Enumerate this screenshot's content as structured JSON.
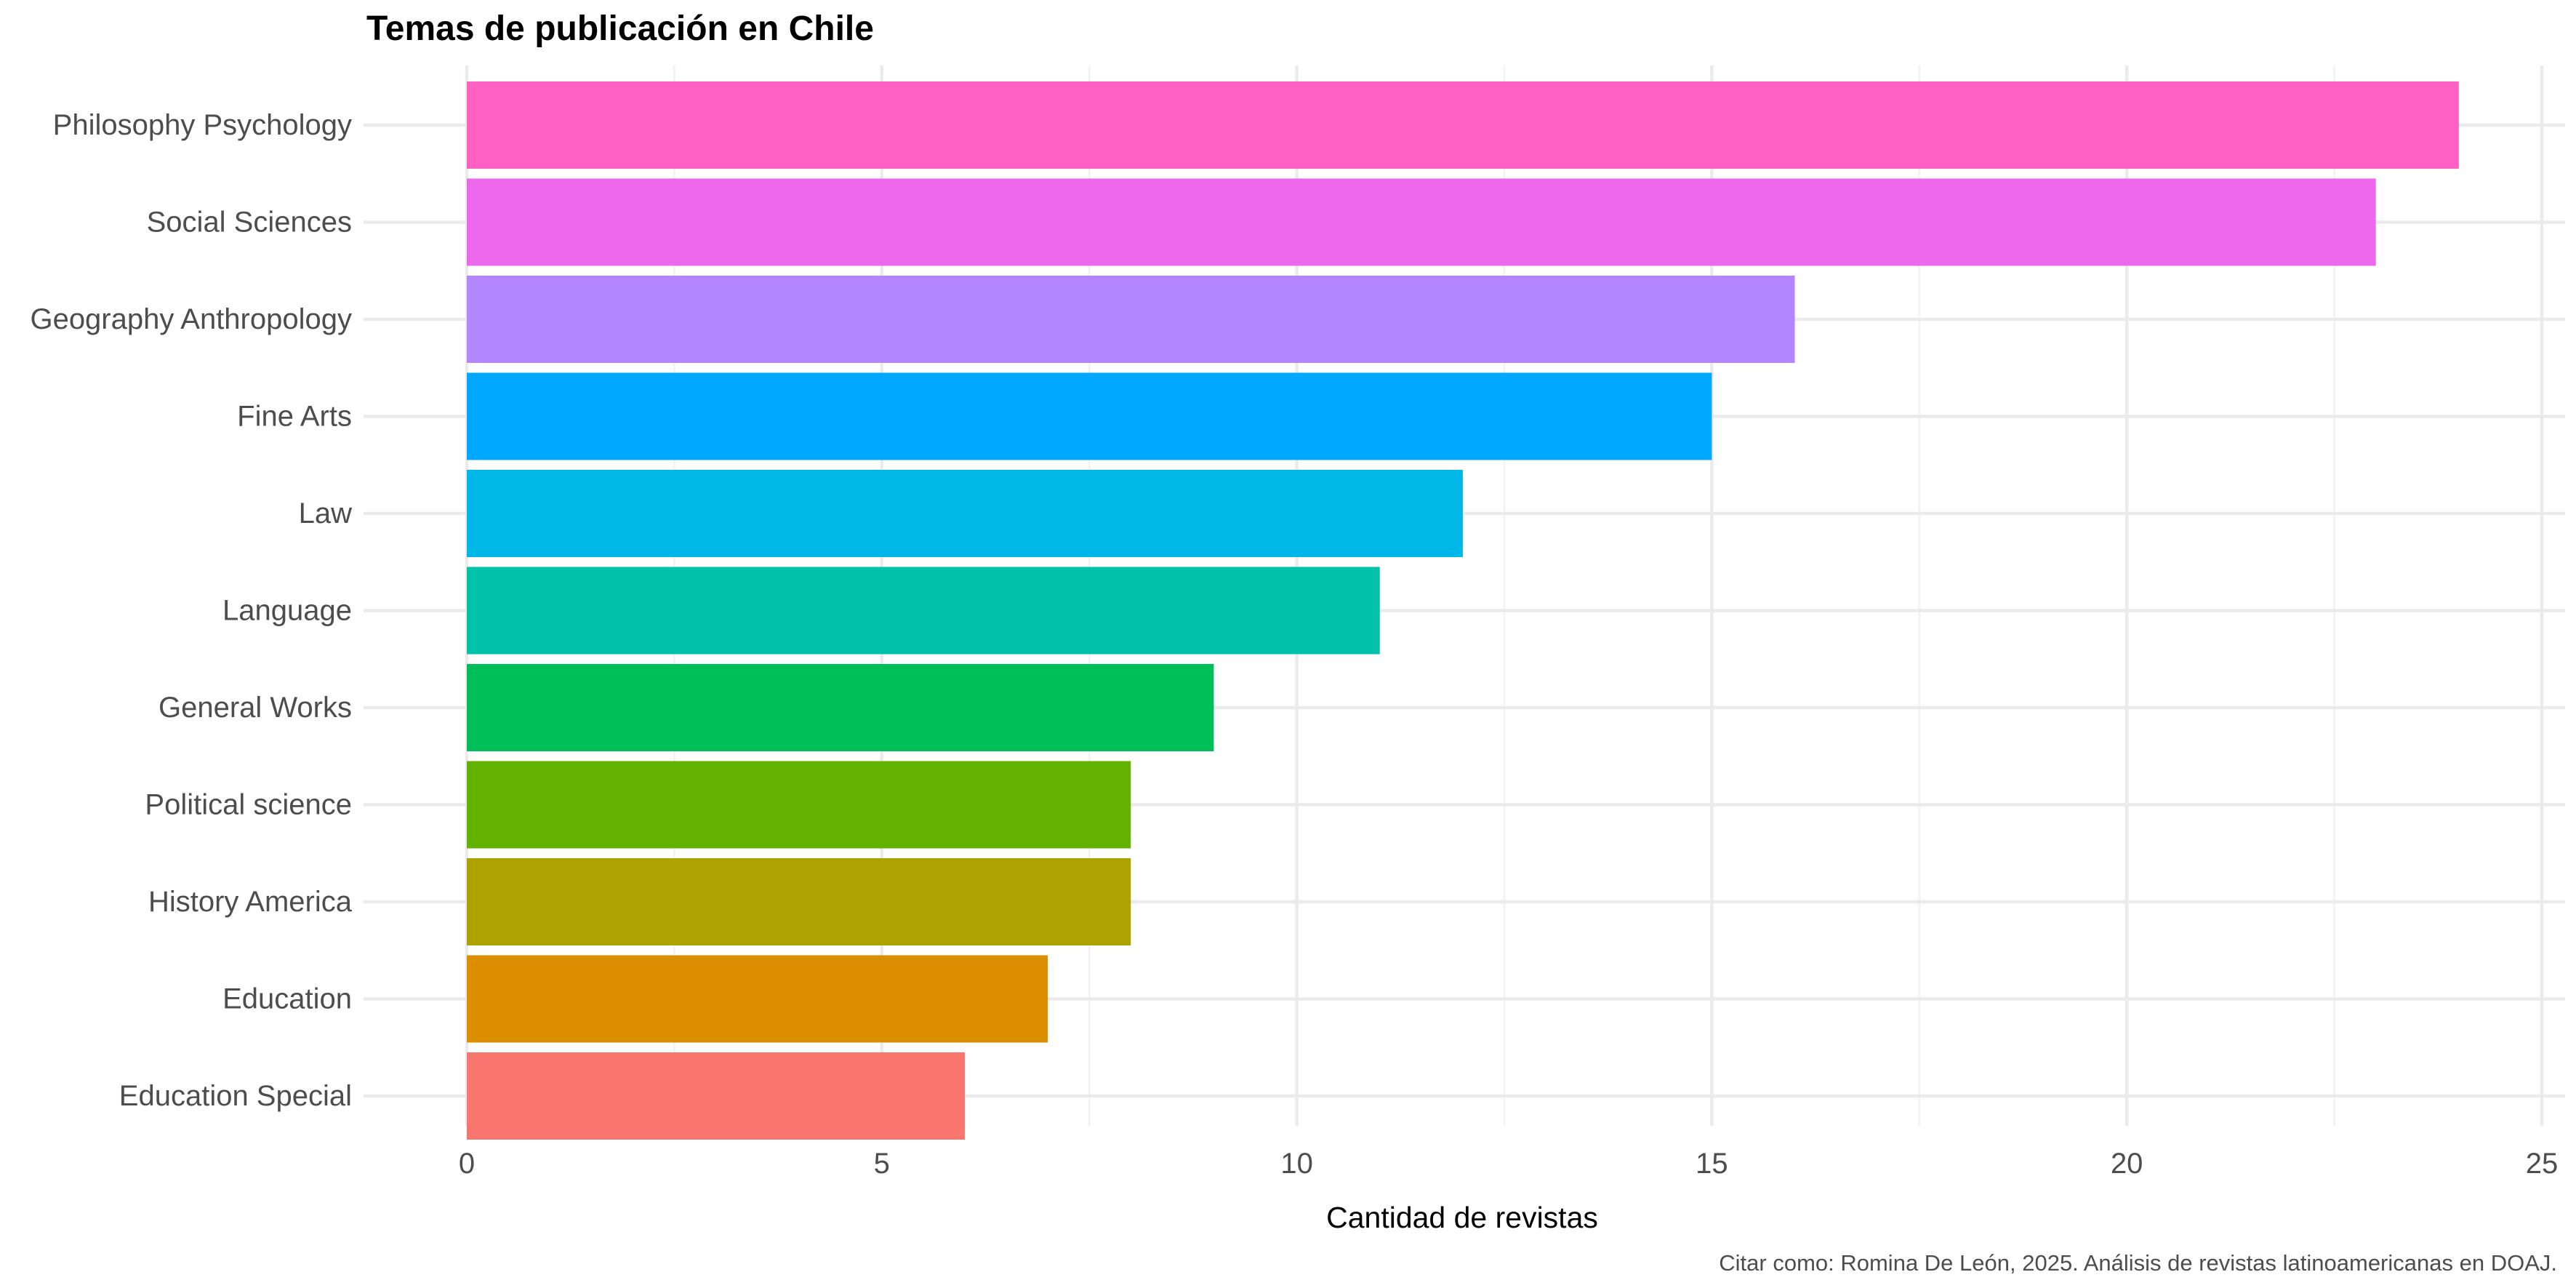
{
  "chart_data": {
    "type": "bar",
    "orientation": "horizontal",
    "title": "Temas de publicación en Chile",
    "xlabel": "Cantidad de revistas",
    "ylabel": "",
    "caption": "Citar como: Romina De León, 2025. Análisis de revistas latinoamericanas en DOAJ.",
    "xlim": [
      0,
      25
    ],
    "x_ticks": [
      0,
      5,
      10,
      15,
      20,
      25
    ],
    "grid": true,
    "legend": "none",
    "categories": [
      "Philosophy Psychology",
      "Social Sciences",
      "Geography Anthropology",
      "Fine Arts",
      "Law",
      "Language",
      "General Works",
      "Political science",
      "History America",
      "Education",
      "Education Special"
    ],
    "values": [
      24,
      23,
      16,
      15,
      12,
      11,
      9,
      8,
      8,
      7,
      6
    ],
    "colors": [
      "#FF61C3",
      "#ED68ED",
      "#B385FF",
      "#00A9FF",
      "#00B8E7",
      "#00C1A9",
      "#00BF59",
      "#64B200",
      "#AEA200",
      "#DB8E00",
      "#F8766D"
    ]
  }
}
